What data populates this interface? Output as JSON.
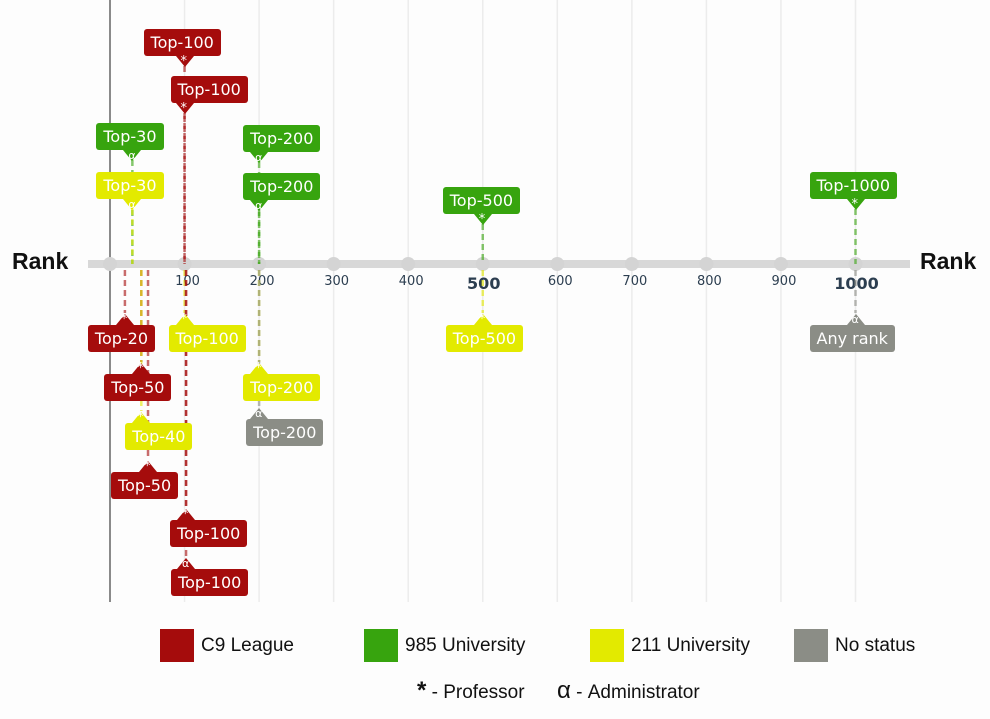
{
  "chart_data": {
    "type": "timeline",
    "axis_label_left": "Rank",
    "axis_label_right": "Rank",
    "xlim": [
      0,
      1000
    ],
    "ticks": [
      {
        "value": 100,
        "label": "100",
        "major": false
      },
      {
        "value": 200,
        "label": "200",
        "major": false
      },
      {
        "value": 300,
        "label": "300",
        "major": false
      },
      {
        "value": 400,
        "label": "400",
        "major": false
      },
      {
        "value": 500,
        "label": "500",
        "major": true
      },
      {
        "value": 600,
        "label": "600",
        "major": false
      },
      {
        "value": 700,
        "label": "700",
        "major": false
      },
      {
        "value": 800,
        "label": "800",
        "major": false
      },
      {
        "value": 900,
        "label": "900",
        "major": false
      },
      {
        "value": 1000,
        "label": "1000",
        "major": true
      }
    ],
    "grid": true,
    "categories": {
      "c9": {
        "name": "C9 League",
        "color": "#a50c0c"
      },
      "985": {
        "name": "985 University",
        "color": "#37a40e"
      },
      "211": {
        "name": "211 University",
        "color": "#e3ea00"
      },
      "none": {
        "name": "No status",
        "color": "#8b8d86"
      }
    },
    "roles": {
      "professor": {
        "symbol": "*",
        "label": "- Professor"
      },
      "administrator": {
        "symbol": "α",
        "label": "- Administrator"
      }
    },
    "markers": [
      {
        "label": "Top-100",
        "rank": 100,
        "category": "c9",
        "role": "professor",
        "side": "above"
      },
      {
        "label": "Top-100",
        "rank": 100,
        "category": "c9",
        "role": "professor",
        "side": "above"
      },
      {
        "label": "Top-30",
        "rank": 30,
        "category": "985",
        "role": "administrator",
        "side": "above"
      },
      {
        "label": "Top-30",
        "rank": 30,
        "category": "211",
        "role": "administrator",
        "side": "above"
      },
      {
        "label": "Top-200",
        "rank": 200,
        "category": "985",
        "role": "administrator",
        "side": "above"
      },
      {
        "label": "Top-200",
        "rank": 200,
        "category": "985",
        "role": "administrator",
        "side": "above"
      },
      {
        "label": "Top-500",
        "rank": 500,
        "category": "985",
        "role": "professor",
        "side": "above"
      },
      {
        "label": "Top-1000",
        "rank": 1000,
        "category": "985",
        "role": "professor",
        "side": "above"
      },
      {
        "label": "Top-20",
        "rank": 20,
        "category": "c9",
        "role": "professor",
        "side": "below"
      },
      {
        "label": "Top-100",
        "rank": 100,
        "category": "211",
        "role": "professor",
        "side": "below"
      },
      {
        "label": "Top-500",
        "rank": 500,
        "category": "211",
        "role": "professor",
        "side": "below"
      },
      {
        "label": "Any rank",
        "rank": 1000,
        "category": "none",
        "role": "administrator",
        "side": "below"
      },
      {
        "label": "Top-50",
        "rank": 42,
        "category": "c9",
        "role": "professor",
        "side": "below"
      },
      {
        "label": "Top-200",
        "rank": 200,
        "category": "211",
        "role": "professor",
        "side": "below"
      },
      {
        "label": "Top-200",
        "rank": 200,
        "category": "none",
        "role": "administrator",
        "side": "below"
      },
      {
        "label": "Top-40",
        "rank": 42,
        "category": "211",
        "role": "professor",
        "side": "below"
      },
      {
        "label": "Top-50",
        "rank": 51,
        "category": "c9",
        "role": "professor",
        "side": "below"
      },
      {
        "label": "Top-100",
        "rank": 102,
        "category": "c9",
        "role": "professor",
        "side": "below"
      },
      {
        "label": "Top-100",
        "rank": 102,
        "category": "c9",
        "role": "administrator",
        "side": "below"
      }
    ]
  },
  "legend": {
    "items": [
      {
        "label": "C9 League",
        "color": "#a50c0c"
      },
      {
        "label": "985 University",
        "color": "#37a40e"
      },
      {
        "label": "211 University",
        "color": "#e3ea00"
      },
      {
        "label": "No status",
        "color": "#8b8d86"
      }
    ],
    "professor_symbol": "*",
    "professor_label": "- Professor",
    "admin_symbol": "α",
    "admin_label": "- Administrator"
  }
}
